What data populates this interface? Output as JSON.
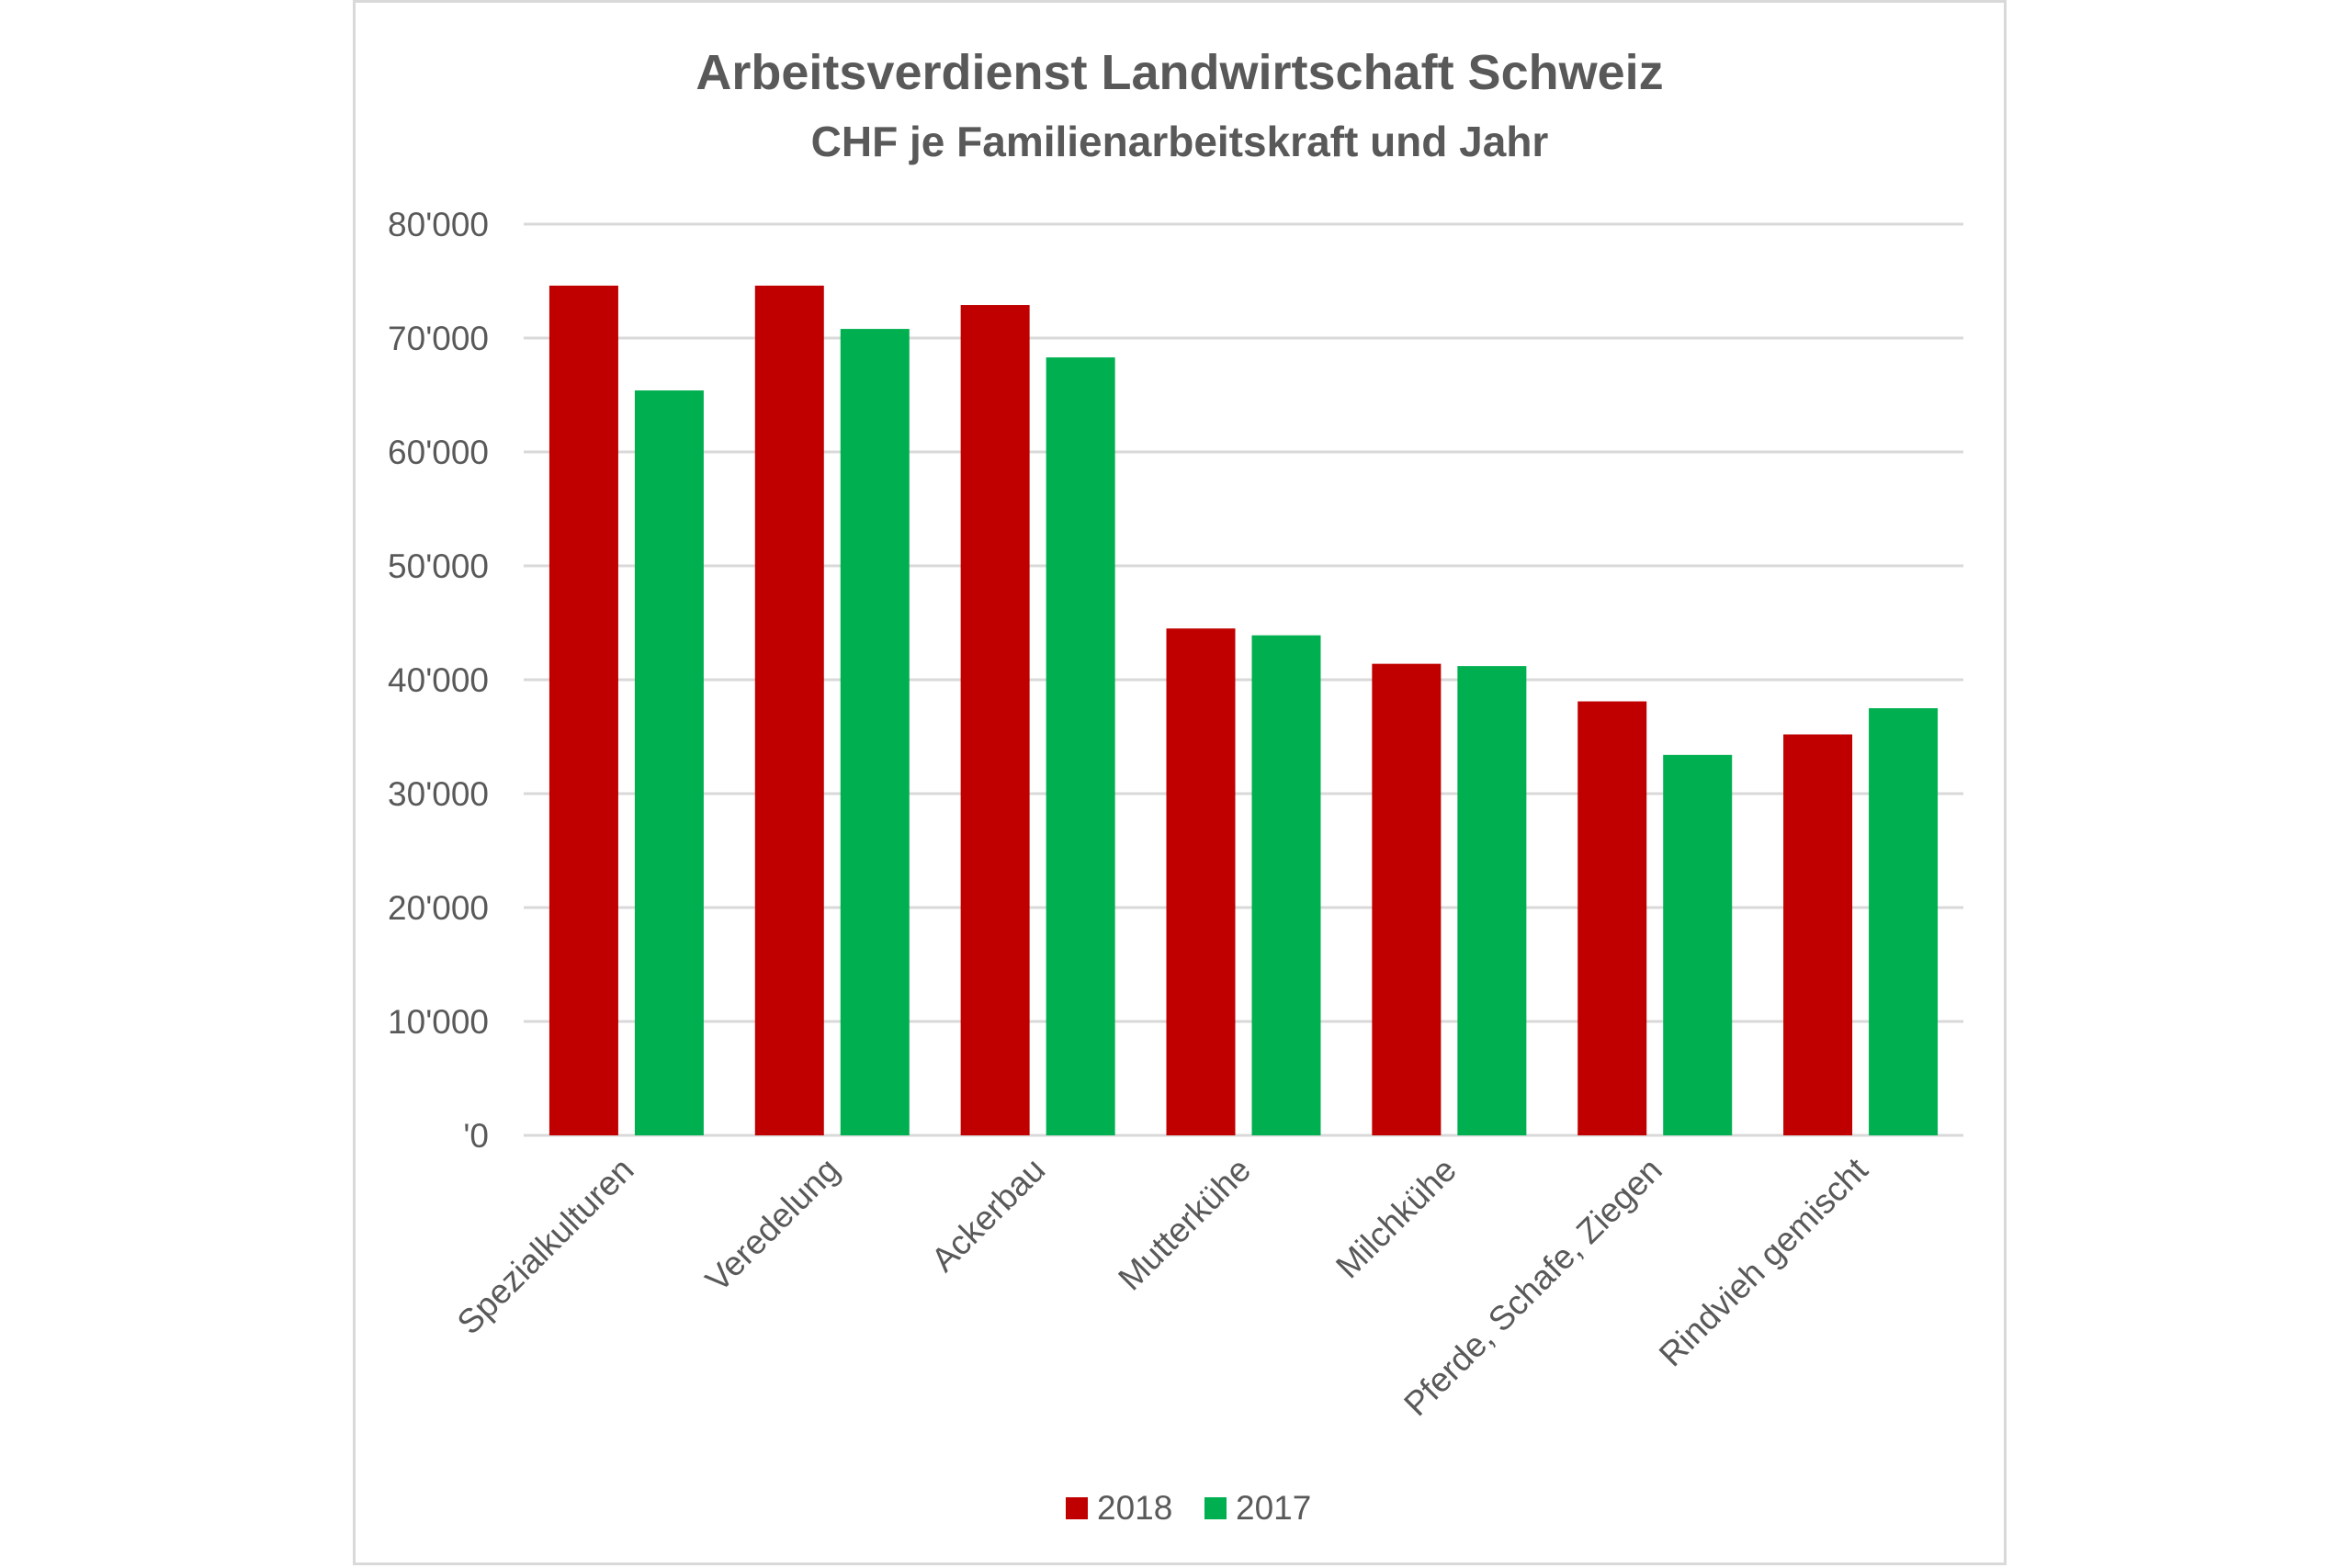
{
  "chart_data": {
    "type": "bar",
    "title": "Arbeitsverdienst Landwirtschaft Schweiz",
    "subtitle": "CHF je Familienarbeitskraft und Jahr",
    "categories": [
      "Spezialkulturen",
      "Veredelung",
      "Ackerbau",
      "Mutterkühe",
      "Milchkühe",
      "Pferde, Schafe, Ziegen",
      "Rindvieh gemischt"
    ],
    "series": [
      {
        "name": "2018",
        "color": "#c00000",
        "values": [
          74600,
          74600,
          72900,
          44500,
          41400,
          38100,
          35200
        ]
      },
      {
        "name": "2017",
        "color": "#00b050",
        "values": [
          65400,
          70800,
          68300,
          43900,
          41200,
          33400,
          37500
        ]
      }
    ],
    "yticks": [
      "'0",
      "10'000",
      "20'000",
      "30'000",
      "40'000",
      "50'000",
      "60'000",
      "70'000",
      "80'000"
    ],
    "ylim": [
      0,
      80000
    ],
    "grid": true,
    "legend_position": "bottom"
  }
}
